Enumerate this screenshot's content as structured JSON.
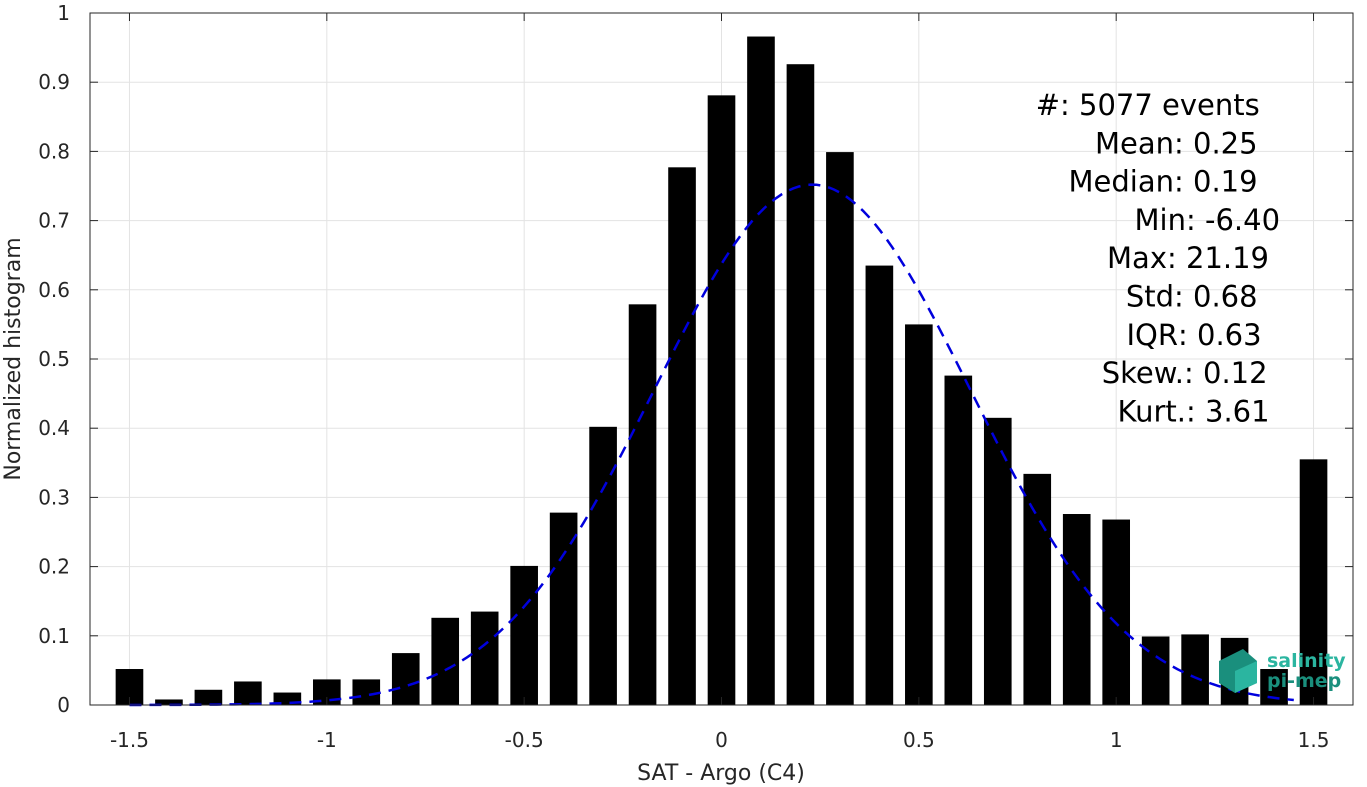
{
  "chart_data": {
    "type": "bar",
    "xlabel": "SAT - Argo (C4)",
    "ylabel": "Normalized histogram",
    "xlim": [
      -1.6,
      1.6
    ],
    "ylim": [
      0,
      1
    ],
    "grid": true,
    "x_ticks": [
      -1.5,
      -1,
      -0.5,
      0,
      0.5,
      1,
      1.5
    ],
    "x_tick_labels": [
      "-1.5",
      "-1",
      "-0.5",
      "0",
      "0.5",
      "1",
      "1.5"
    ],
    "y_ticks": [
      0,
      0.1,
      0.2,
      0.3,
      0.4,
      0.5,
      0.6,
      0.7,
      0.8,
      0.9,
      1
    ],
    "y_tick_labels": [
      "0",
      "0.1",
      "0.2",
      "0.3",
      "0.4",
      "0.5",
      "0.6",
      "0.7",
      "0.8",
      "0.9",
      "1"
    ],
    "bar_width": 0.07,
    "bar_color": "#000000",
    "bars": {
      "x": [
        -1.5,
        -1.4,
        -1.3,
        -1.2,
        -1.1,
        -1.0,
        -0.9,
        -0.8,
        -0.7,
        -0.6,
        -0.5,
        -0.4,
        -0.3,
        -0.2,
        -0.1,
        0.0,
        0.1,
        0.2,
        0.3,
        0.4,
        0.5,
        0.6,
        0.7,
        0.8,
        0.9,
        1.0,
        1.1,
        1.2,
        1.3,
        1.4,
        1.5
      ],
      "values": [
        0.052,
        0.008,
        0.022,
        0.034,
        0.018,
        0.037,
        0.037,
        0.075,
        0.126,
        0.135,
        0.201,
        0.278,
        0.402,
        0.579,
        0.777,
        0.881,
        0.966,
        0.926,
        0.799,
        0.635,
        0.55,
        0.476,
        0.415,
        0.334,
        0.276,
        0.268,
        0.099,
        0.102,
        0.097,
        0.052,
        0.355
      ]
    },
    "gaussian_fit": {
      "color": "#0000dd",
      "style": "dashed",
      "mean": 0.23,
      "std": 0.4,
      "peak": 0.752,
      "x_range": [
        -1.5,
        1.45
      ]
    },
    "annotations": [
      {
        "label": "#  ",
        "value": ": 5077 events"
      },
      {
        "label": "Mean",
        "value": " : 0.25"
      },
      {
        "label": "Median",
        "value": " : 0.19"
      },
      {
        "label": "Min",
        "value": " : -6.40"
      },
      {
        "label": "Max",
        "value": " : 21.19"
      },
      {
        "label": "Std",
        "value": " : 0.68"
      },
      {
        "label": "IQR",
        "value": " : 0.63"
      },
      {
        "label": "Skew.",
        "value": " : 0.12"
      },
      {
        "label": "Kurt.",
        "value": " : 3.61"
      }
    ]
  },
  "logo": {
    "line1": "salinity",
    "line2": "pi-mep",
    "color": "#2bb5a0"
  }
}
